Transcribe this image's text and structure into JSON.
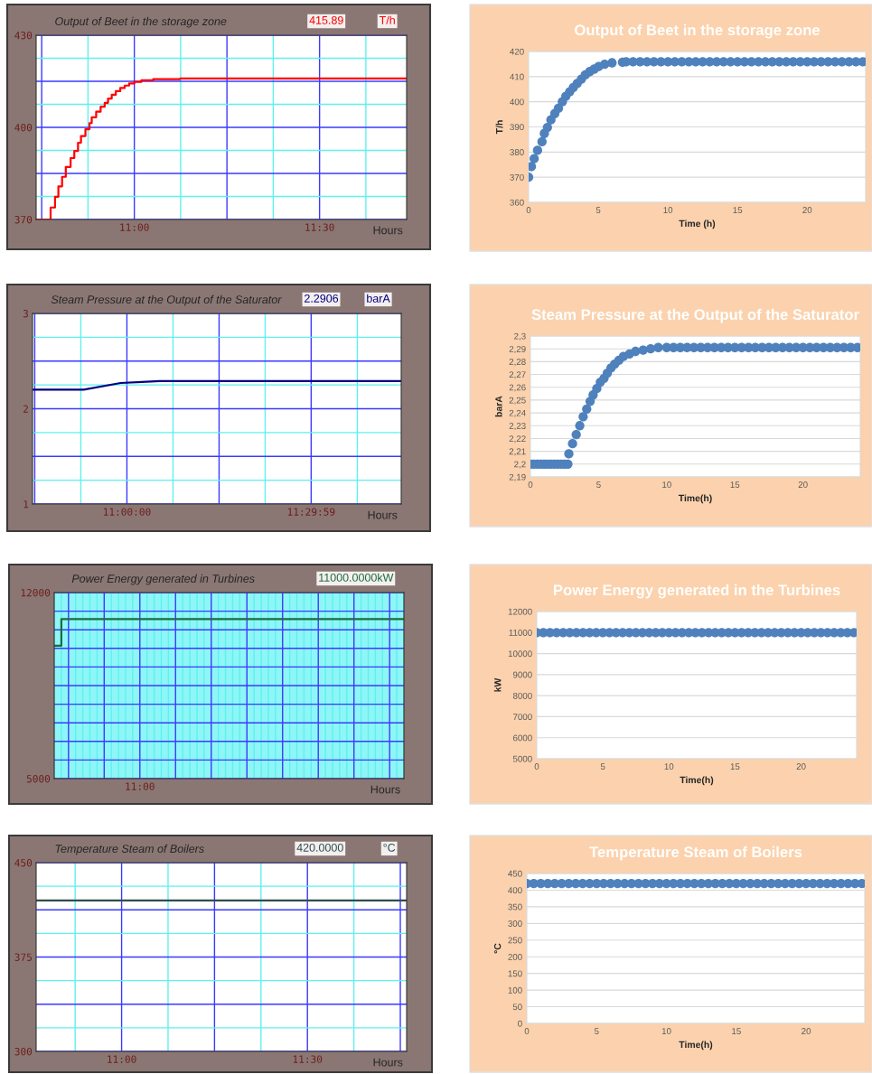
{
  "chart_data": [
    {
      "type": "step",
      "title": "Output of Beet in the storage zone",
      "xlabel": "Hours",
      "annotations": [
        "415.89",
        "T/h"
      ],
      "color": "#ff0000",
      "marker": "none",
      "line_style": "solid",
      "grid": true,
      "x": [
        10.735,
        10.774,
        10.786,
        10.795,
        10.805,
        10.815,
        10.828,
        10.838,
        10.848,
        10.856,
        10.868,
        10.879,
        10.885,
        10.897,
        10.909,
        10.92,
        10.929,
        10.939,
        10.95,
        10.962,
        10.974,
        10.986,
        11.0,
        11.019,
        11.051,
        11.124,
        11.735
      ],
      "values": [
        370,
        373.9,
        377.4,
        380.8,
        383.9,
        387.1,
        390.0,
        392.3,
        395.0,
        397.2,
        399.4,
        401.4,
        403.3,
        405.1,
        406.7,
        408.0,
        409.4,
        410.6,
        411.8,
        412.8,
        413.6,
        414.3,
        414.8,
        415.3,
        415.7,
        415.9,
        415.9
      ],
      "xlim": [
        10.735,
        11.735
      ],
      "xticks": [
        {
          "value": 10.75,
          "label": null
        },
        {
          "value": 10.875,
          "label": null
        },
        {
          "value": 11.0,
          "label": "11:00"
        },
        {
          "value": 11.125,
          "label": null
        },
        {
          "value": 11.25,
          "label": null
        },
        {
          "value": 11.375,
          "label": null
        },
        {
          "value": 11.5,
          "label": "11:30"
        },
        {
          "value": 11.625,
          "label": null
        }
      ],
      "ylim": [
        370,
        430
      ],
      "yticks": [
        370,
        {
          "value": 377.5,
          "label": null
        },
        {
          "value": 385,
          "label": null
        },
        {
          "value": 392.5,
          "label": null
        },
        400,
        {
          "value": 407.5,
          "label": null
        },
        {
          "value": 415,
          "label": null
        },
        {
          "value": 422.5,
          "label": null
        },
        430
      ]
    },
    {
      "type": "scatter",
      "title": "Output of Beet in the storage zone",
      "xlabel": "Time (h)",
      "ylabel": "T/h",
      "color": "#4f81bd",
      "marker": "circle",
      "grid": "y",
      "x": [
        0,
        0.2,
        0.4,
        0.64,
        0.96,
        1.13,
        1.35,
        1.6,
        1.88,
        2.14,
        2.42,
        2.67,
        2.95,
        3.21,
        3.49,
        3.79,
        4.07,
        4.39,
        4.71,
        5.03,
        5.46,
        5.99,
        6.74,
        7,
        7.5,
        8,
        8.5,
        9,
        9.5,
        10,
        10.5,
        11,
        11.5,
        12,
        12.5,
        13,
        13.5,
        14,
        14.5,
        15,
        15.5,
        16,
        16.5,
        17,
        17.5,
        18,
        18.5,
        19,
        19.5,
        20,
        20.5,
        21,
        21.5,
        22,
        22.5,
        23,
        23.5,
        24
      ],
      "values": [
        370,
        374.2,
        377.4,
        380.7,
        384.1,
        387.4,
        389.8,
        392.8,
        395.3,
        397.4,
        400.0,
        402.2,
        404.0,
        405.7,
        407.3,
        409.0,
        410.7,
        412.0,
        413.0,
        414.0,
        414.9,
        415.5,
        415.7,
        415.9,
        415.9,
        415.9,
        415.9,
        415.9,
        415.9,
        415.9,
        415.9,
        415.9,
        415.9,
        415.9,
        415.9,
        415.9,
        415.9,
        415.9,
        415.9,
        415.9,
        415.9,
        415.9,
        415.9,
        415.9,
        415.9,
        415.9,
        415.9,
        415.9,
        415.9,
        415.9,
        415.9,
        415.9,
        415.9,
        415.9,
        415.9,
        415.9,
        415.9,
        415.9
      ],
      "xlim": [
        0,
        24.2
      ],
      "xticks": [
        0,
        5,
        10,
        15,
        20
      ],
      "ylim": [
        360,
        420
      ],
      "yticks": [
        360,
        370,
        380,
        390,
        400,
        410,
        420
      ]
    },
    {
      "type": "line",
      "title": "Steam Pressure at the Output of the Saturator",
      "xlabel": "Hours",
      "annotations": [
        "2.2906",
        "barA"
      ],
      "color": "#000080",
      "marker": "none",
      "line_style": "solid",
      "grid": true,
      "x": [
        10.744,
        10.883,
        10.983,
        11.04,
        11.089,
        11.744
      ],
      "values": [
        2.2,
        2.2,
        2.27,
        2.28,
        2.29,
        2.29
      ],
      "xlim": [
        10.744,
        11.744
      ],
      "xticks": [
        {
          "value": 10.75,
          "label": null
        },
        {
          "value": 10.875,
          "label": null
        },
        {
          "value": 11.0,
          "label": "11:00:00"
        },
        {
          "value": 11.125,
          "label": null
        },
        {
          "value": 11.25,
          "label": null
        },
        {
          "value": 11.375,
          "label": null
        },
        {
          "value": 11.49972,
          "label": "11:29:59"
        },
        {
          "value": 11.625,
          "label": null
        }
      ],
      "ylim": [
        1,
        3
      ],
      "yticks": [
        1,
        {
          "value": 1.25,
          "label": null
        },
        {
          "value": 1.5,
          "label": null
        },
        {
          "value": 1.75,
          "label": null
        },
        2,
        {
          "value": 2.25,
          "label": null
        },
        {
          "value": 2.5,
          "label": null
        },
        {
          "value": 2.75,
          "label": null
        },
        3
      ]
    },
    {
      "type": "scatter",
      "title": "Steam Pressure at the Output of the Saturator",
      "xlabel": "Time(h)",
      "ylabel": "barA",
      "color": "#4f81bd",
      "marker": "circle",
      "grid": "y",
      "x": [
        0,
        0.25,
        0.5,
        0.75,
        1,
        1.25,
        1.5,
        1.75,
        2,
        2.25,
        2.5,
        2.75,
        2.82,
        3.09,
        3.36,
        3.62,
        3.87,
        4.13,
        4.38,
        4.6,
        4.87,
        5.13,
        5.4,
        5.64,
        5.91,
        6.18,
        6.49,
        6.82,
        7.27,
        7.71,
        8.27,
        8.82,
        9.38,
        10,
        10.5,
        11,
        11.5,
        12,
        12.5,
        13,
        13.5,
        14,
        14.5,
        15,
        15.5,
        16,
        16.5,
        17,
        17.5,
        18,
        18.5,
        19,
        19.5,
        20,
        20.5,
        21,
        21.5,
        22,
        22.5,
        23,
        23.5,
        24
      ],
      "values": [
        2.2,
        2.2,
        2.2,
        2.2,
        2.2,
        2.2,
        2.2,
        2.2,
        2.2,
        2.2,
        2.2,
        2.2,
        2.208,
        2.216,
        2.223,
        2.23,
        2.237,
        2.243,
        2.249,
        2.254,
        2.259,
        2.264,
        2.267,
        2.271,
        2.275,
        2.278,
        2.281,
        2.284,
        2.286,
        2.288,
        2.289,
        2.29,
        2.291,
        2.291,
        2.291,
        2.291,
        2.291,
        2.291,
        2.291,
        2.291,
        2.291,
        2.291,
        2.291,
        2.291,
        2.291,
        2.291,
        2.291,
        2.291,
        2.291,
        2.291,
        2.291,
        2.291,
        2.291,
        2.291,
        2.291,
        2.291,
        2.291,
        2.291,
        2.291,
        2.291,
        2.291,
        2.291
      ],
      "xlim": [
        0,
        24.2
      ],
      "xticks": [
        0,
        5,
        10,
        15,
        20
      ],
      "ylim": [
        2.19,
        2.3
      ],
      "yticks": [
        {
          "value": 2.19,
          "label": "2,19"
        },
        {
          "value": 2.2,
          "label": "2,2"
        },
        {
          "value": 2.21,
          "label": "2,21"
        },
        {
          "value": 2.22,
          "label": "2,22"
        },
        {
          "value": 2.23,
          "label": "2,23"
        },
        {
          "value": 2.24,
          "label": "2,24"
        },
        {
          "value": 2.25,
          "label": "2,25"
        },
        {
          "value": 2.26,
          "label": "2,26"
        },
        {
          "value": 2.27,
          "label": "2,27"
        },
        {
          "value": 2.28,
          "label": "2,28"
        },
        {
          "value": 2.29,
          "label": "2,29"
        },
        {
          "value": 2.3,
          "label": "2,3"
        }
      ]
    },
    {
      "type": "step",
      "title": "Power Energy generated in Turbines",
      "xlabel": "Hours",
      "annotations": [
        "11000.0000kW"
      ],
      "color": "#1e6b3c",
      "marker": "none",
      "line_style": "solid",
      "grid": true,
      "categories": [
        null,
        null,
        null,
        null,
        null,
        null,
        null,
        null,
        null,
        null,
        null,
        null,
        "11:00",
        null,
        null,
        null,
        null,
        null,
        null,
        null,
        null,
        null,
        null,
        null,
        null,
        null,
        null,
        null,
        null,
        null,
        null,
        null,
        null,
        null,
        null,
        null,
        null,
        null,
        null,
        null,
        null,
        null,
        null,
        null,
        null,
        null,
        null,
        null,
        null,
        null
      ],
      "values": [
        10000,
        11000,
        11000,
        11000,
        11000,
        11000,
        11000,
        11000,
        11000,
        11000,
        11000,
        11000,
        11000,
        11000,
        11000,
        11000,
        11000,
        11000,
        11000,
        11000,
        11000,
        11000,
        11000,
        11000,
        11000,
        11000,
        11000,
        11000,
        11000,
        11000,
        11000,
        11000,
        11000,
        11000,
        11000,
        11000,
        11000,
        11000,
        11000,
        11000,
        11000,
        11000,
        11000,
        11000,
        11000,
        11000,
        11000,
        11000,
        11000,
        11000
      ],
      "ylim": [
        5000,
        12000
      ],
      "yticks": [
        5000,
        {
          "value": 5700,
          "label": null
        },
        {
          "value": 6400,
          "label": null
        },
        {
          "value": 7100,
          "label": null
        },
        {
          "value": 7800,
          "label": null
        },
        {
          "value": 8500,
          "label": null
        },
        {
          "value": 9200,
          "label": null
        },
        {
          "value": 9900,
          "label": null
        },
        {
          "value": 10600,
          "label": null
        },
        {
          "value": 11300,
          "label": null
        },
        12000
      ]
    },
    {
      "type": "scatter",
      "title": "Power Energy generated in the Turbines",
      "xlabel": "Time(h)",
      "ylabel": "kW",
      "color": "#4f81bd",
      "marker": "circle",
      "grid": "y",
      "x": [
        0,
        0.5,
        1,
        1.5,
        2,
        2.5,
        3,
        3.5,
        4,
        4.5,
        5,
        5.5,
        6,
        6.5,
        7,
        7.5,
        8,
        8.5,
        9,
        9.5,
        10,
        10.5,
        11,
        11.5,
        12,
        12.5,
        13,
        13.5,
        14,
        14.5,
        15,
        15.5,
        16,
        16.5,
        17,
        17.5,
        18,
        18.5,
        19,
        19.5,
        20,
        20.5,
        21,
        21.5,
        22,
        22.5,
        23,
        23.5,
        24
      ],
      "values": [
        11000,
        11000,
        11000,
        11000,
        11000,
        11000,
        11000,
        11000,
        11000,
        11000,
        11000,
        11000,
        11000,
        11000,
        11000,
        11000,
        11000,
        11000,
        11000,
        11000,
        11000,
        11000,
        11000,
        11000,
        11000,
        11000,
        11000,
        11000,
        11000,
        11000,
        11000,
        11000,
        11000,
        11000,
        11000,
        11000,
        11000,
        11000,
        11000,
        11000,
        11000,
        11000,
        11000,
        11000,
        11000,
        11000,
        11000,
        11000,
        11000
      ],
      "xlim": [
        0,
        24.2
      ],
      "xticks": [
        0,
        5,
        10,
        15,
        20
      ],
      "ylim": [
        5000,
        12000
      ],
      "yticks": [
        5000,
        6000,
        7000,
        8000,
        9000,
        10000,
        11000,
        12000
      ]
    },
    {
      "type": "line",
      "title": "Temperature Steam of Boilers",
      "xlabel": "Hours",
      "annotations": [
        "420.0000",
        "°C"
      ],
      "color": "#2f4f4f",
      "marker": "none",
      "line_style": "solid",
      "grid": true,
      "x": [
        10.77,
        11.767
      ],
      "values": [
        420,
        420
      ],
      "xlim": [
        10.77,
        11.767
      ],
      "xticks": [
        {
          "value": 10.875,
          "label": null
        },
        {
          "value": 11.0,
          "label": "11:00"
        },
        {
          "value": 11.125,
          "label": null
        },
        {
          "value": 11.25,
          "label": null
        },
        {
          "value": 11.375,
          "label": null
        },
        {
          "value": 11.5,
          "label": "11:30"
        },
        {
          "value": 11.625,
          "label": null
        },
        {
          "value": 11.75,
          "label": null
        }
      ],
      "ylim": [
        300,
        450
      ],
      "yticks": [
        300,
        {
          "value": 318.75,
          "label": null
        },
        {
          "value": 337.5,
          "label": null
        },
        {
          "value": 356.25,
          "label": null
        },
        375,
        {
          "value": 393.75,
          "label": null
        },
        {
          "value": 412.5,
          "label": null
        },
        {
          "value": 431.25,
          "label": null
        },
        450
      ]
    },
    {
      "type": "scatter",
      "title": "Temperature Steam of Boilers",
      "xlabel": "Time(h)",
      "ylabel": "°C",
      "color": "#4f81bd",
      "marker": "circle",
      "grid": "y",
      "x": [
        0,
        0.5,
        1,
        1.5,
        2,
        2.5,
        3,
        3.5,
        4,
        4.5,
        5,
        5.5,
        6,
        6.5,
        7,
        7.5,
        8,
        8.5,
        9,
        9.5,
        10,
        10.5,
        11,
        11.5,
        12,
        12.5,
        13,
        13.5,
        14,
        14.5,
        15,
        15.5,
        16,
        16.5,
        17,
        17.5,
        18,
        18.5,
        19,
        19.5,
        20,
        20.5,
        21,
        21.5,
        22,
        22.5,
        23,
        23.5,
        24
      ],
      "values": [
        420,
        420,
        420,
        420,
        420,
        420,
        420,
        420,
        420,
        420,
        420,
        420,
        420,
        420,
        420,
        420,
        420,
        420,
        420,
        420,
        420,
        420,
        420,
        420,
        420,
        420,
        420,
        420,
        420,
        420,
        420,
        420,
        420,
        420,
        420,
        420,
        420,
        420,
        420,
        420,
        420,
        420,
        420,
        420,
        420,
        420,
        420,
        420,
        420
      ],
      "xlim": [
        0,
        24.2
      ],
      "xticks": [
        0,
        5,
        10,
        15,
        20
      ],
      "ylim": [
        0,
        450
      ],
      "yticks": [
        0,
        50,
        100,
        150,
        200,
        250,
        300,
        350,
        400,
        450
      ]
    }
  ]
}
